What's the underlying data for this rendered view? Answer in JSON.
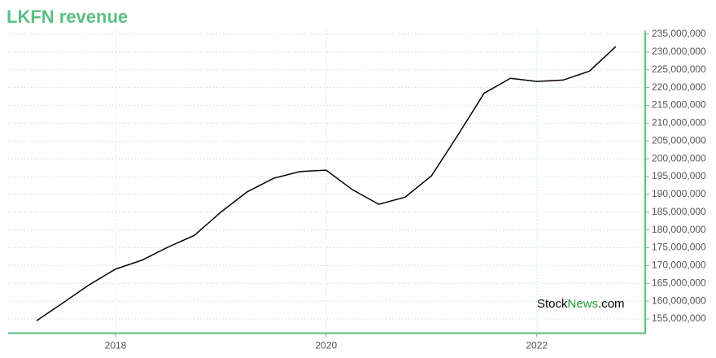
{
  "chart_data": {
    "type": "line",
    "title": "LKFN revenue",
    "x": [
      2017.25,
      2017.5,
      2017.75,
      2018.0,
      2018.25,
      2018.5,
      2018.75,
      2019.0,
      2019.25,
      2019.5,
      2019.75,
      2020.0,
      2020.25,
      2020.5,
      2020.75,
      2021.0,
      2021.25,
      2021.5,
      2021.75,
      2022.0,
      2022.25,
      2022.5,
      2022.75
    ],
    "series": [
      {
        "name": "revenue",
        "color": "#000000",
        "values": [
          154500000,
          159500000,
          164600000,
          169000000,
          171500000,
          175200000,
          178500000,
          185000000,
          190700000,
          194500000,
          196400000,
          196800000,
          191300000,
          187200000,
          189200000,
          195200000,
          206600000,
          218400000,
          222600000,
          221700000,
          222100000,
          224600000,
          231500000
        ]
      }
    ],
    "xlim": [
      2016.98,
      2023.03
    ],
    "xticks": [
      2018,
      2020,
      2022
    ],
    "ylim": [
      151000000,
      236000000
    ],
    "yticks": [
      {
        "value": 155000000,
        "label": "155,000,000"
      },
      {
        "value": 160000000,
        "label": "160,000,000"
      },
      {
        "value": 165000000,
        "label": "165,000,000"
      },
      {
        "value": 170000000,
        "label": "170,000,000"
      },
      {
        "value": 175000000,
        "label": "175,000,000"
      },
      {
        "value": 180000000,
        "label": "180,000,000"
      },
      {
        "value": 185000000,
        "label": "185,000,000"
      },
      {
        "value": 190000000,
        "label": "190,000,000"
      },
      {
        "value": 195000000,
        "label": "195,000,000"
      },
      {
        "value": 200000000,
        "label": "200,000,000"
      },
      {
        "value": 205000000,
        "label": "205,000,000"
      },
      {
        "value": 210000000,
        "label": "210,000,000"
      },
      {
        "value": 215000000,
        "label": "215,000,000"
      },
      {
        "value": 220000000,
        "label": "220,000,000"
      },
      {
        "value": 225000000,
        "label": "225,000,000"
      },
      {
        "value": 230000000,
        "label": "230,000,000"
      },
      {
        "value": 235000000,
        "label": "235,000,000"
      }
    ],
    "grid": true,
    "axis_color": "#5bbf85",
    "watermark": [
      "Stock",
      "News",
      ".com"
    ]
  }
}
